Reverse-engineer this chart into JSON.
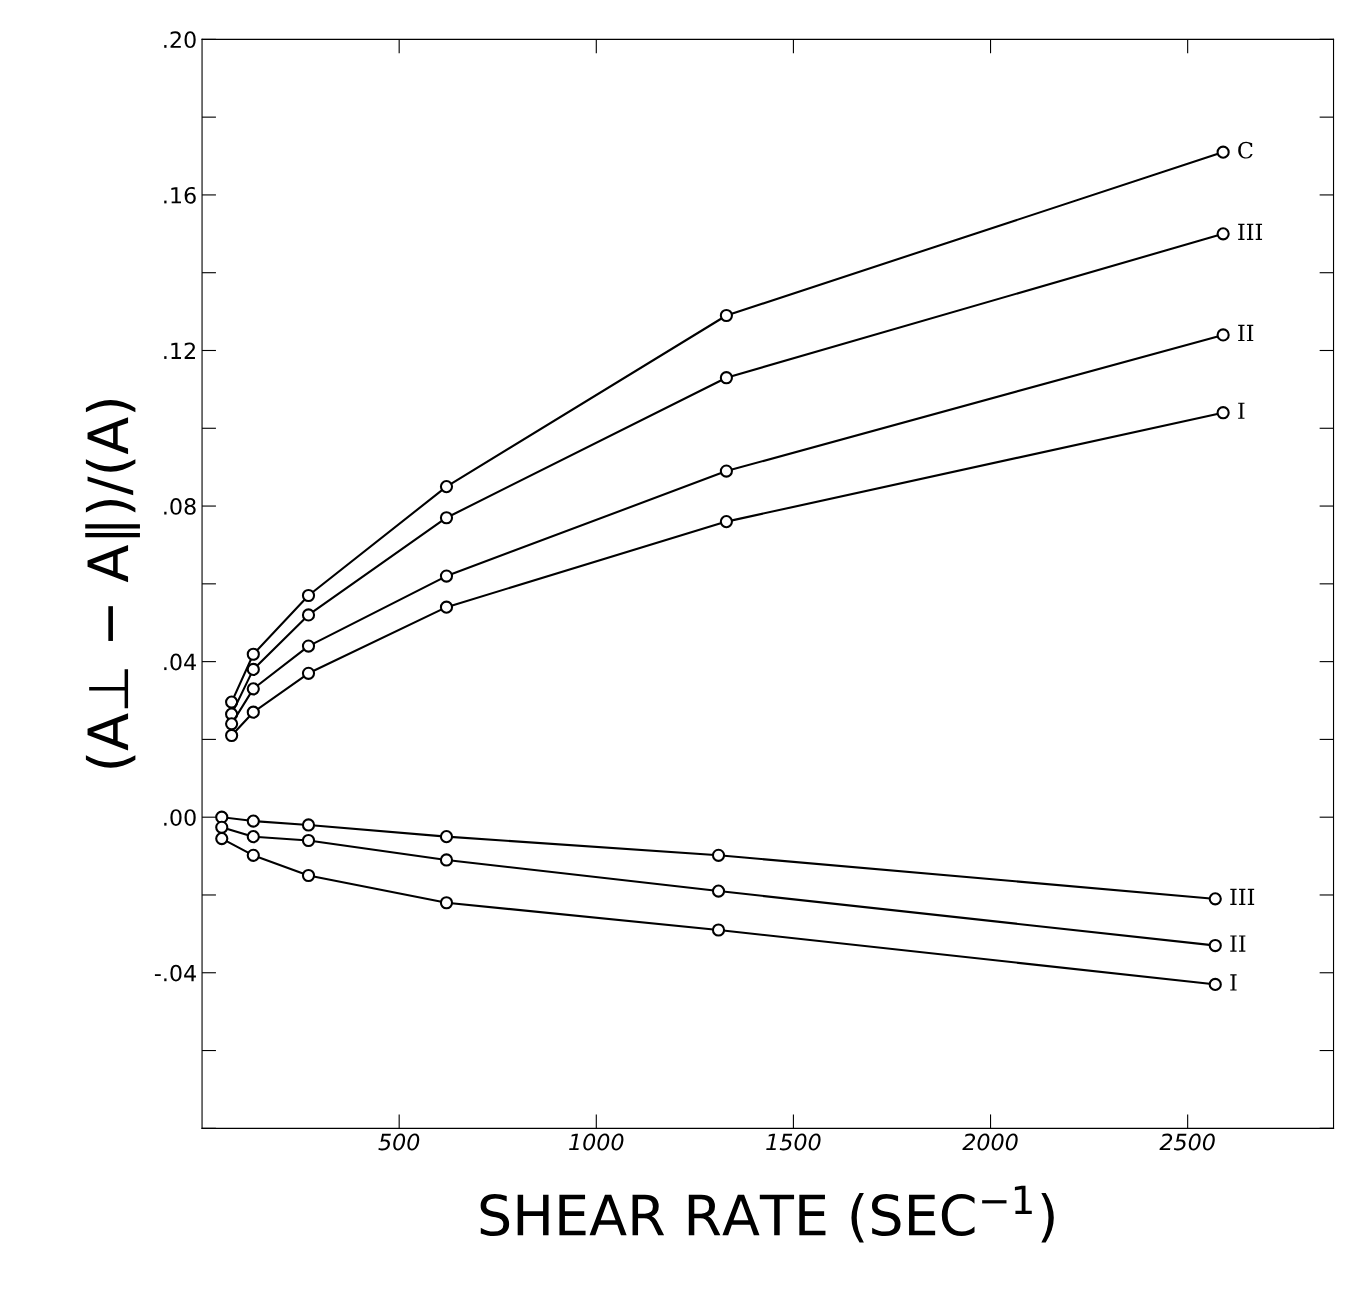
{
  "chart_data": {
    "type": "line",
    "xlabel": "SHEAR RATE (SEC$^{−1}$)",
    "ylabel": "(A⊥ − A∥)/(A)",
    "xlim": [
      0,
      2870
    ],
    "ylim": [
      -0.08,
      0.2
    ],
    "xticks": [
      500,
      1000,
      1500,
      2000,
      2500
    ],
    "yticks": [
      {
        "value": -0.08,
        "label": null
      },
      {
        "value": -0.06,
        "label": null
      },
      {
        "value": -0.04,
        "label": "-.04"
      },
      {
        "value": -0.02,
        "label": null
      },
      {
        "value": 0,
        "label": ".00"
      },
      {
        "value": 0.02,
        "label": null
      },
      {
        "value": 0.04,
        "label": ".04"
      },
      {
        "value": 0.06,
        "label": null
      },
      {
        "value": 0.08,
        "label": ".08"
      },
      {
        "value": 0.1,
        "label": null
      },
      {
        "value": 0.12,
        "label": ".12"
      },
      {
        "value": 0.14,
        "label": null
      },
      {
        "value": 0.16,
        "label": ".16"
      },
      {
        "value": 0.18,
        "label": null
      },
      {
        "value": 0.2,
        "label": ".20"
      }
    ],
    "marker": "circle",
    "line_style": "solid",
    "grid": false,
    "series": [
      {
        "name": "C",
        "color": "#000000",
        "x": [
          75,
          130,
          270,
          620,
          1330,
          2590
        ],
        "values": [
          0.0296,
          0.0419,
          0.057,
          0.085,
          0.129,
          0.171
        ]
      },
      {
        "name": "III",
        "color": "#000000",
        "x": [
          75,
          130,
          270,
          620,
          1330,
          2590
        ],
        "values": [
          0.0265,
          0.038,
          0.052,
          0.077,
          0.113,
          0.15
        ]
      },
      {
        "name": "II",
        "color": "#000000",
        "x": [
          75,
          130,
          270,
          620,
          1330,
          2590
        ],
        "values": [
          0.024,
          0.033,
          0.044,
          0.062,
          0.089,
          0.124
        ]
      },
      {
        "name": "I",
        "color": "#000000",
        "x": [
          75,
          130,
          270,
          620,
          1330,
          2590
        ],
        "values": [
          0.021,
          0.027,
          0.037,
          0.054,
          0.076,
          0.104
        ]
      },
      {
        "name": "III",
        "color": "#000000",
        "x": [
          50,
          130,
          270,
          620,
          1310,
          2570
        ],
        "values": [
          0.0,
          -0.001,
          -0.002,
          -0.005,
          -0.0098,
          -0.021
        ]
      },
      {
        "name": "II",
        "color": "#000000",
        "x": [
          50,
          130,
          270,
          620,
          1310,
          2570
        ],
        "values": [
          -0.0026,
          -0.005,
          -0.006,
          -0.011,
          -0.019,
          -0.033
        ]
      },
      {
        "name": "I",
        "color": "#000000",
        "x": [
          50,
          130,
          270,
          620,
          1310,
          2570
        ],
        "values": [
          -0.0055,
          -0.0098,
          -0.015,
          -0.022,
          -0.029,
          -0.043
        ]
      }
    ]
  }
}
